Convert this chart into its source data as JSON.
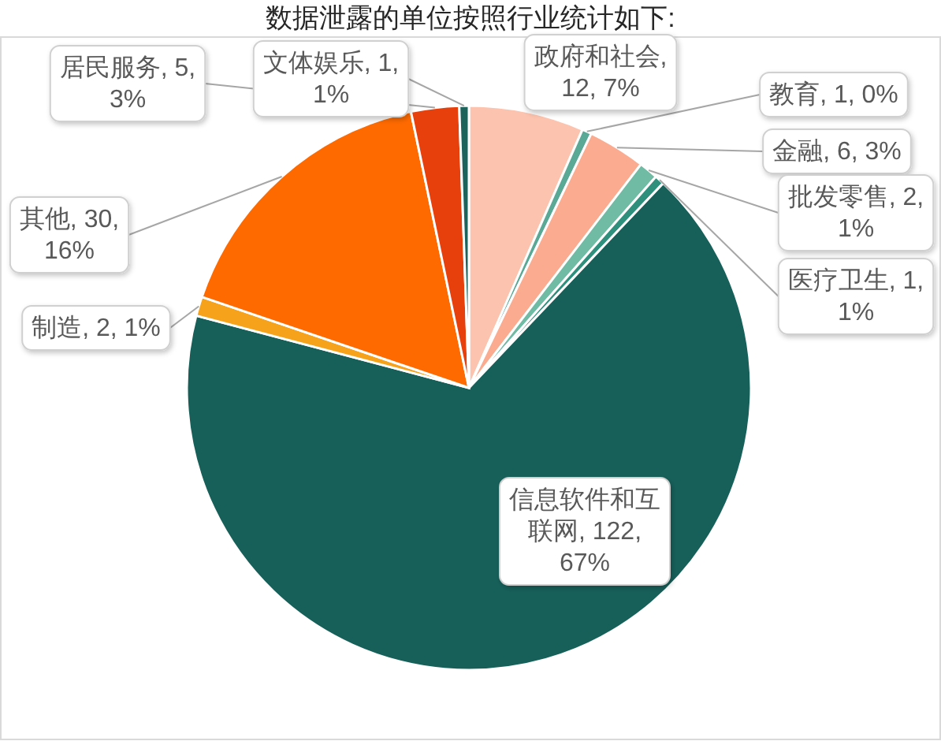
{
  "chart_data": {
    "type": "pie",
    "title": "数据泄露的单位按照行业统计如下:",
    "categories": [
      "政府和社会",
      "教育",
      "金融",
      "批发零售",
      "医疗卫生",
      "信息软件和互联网",
      "制造",
      "其他",
      "居民服务",
      "文体娱乐"
    ],
    "values": [
      12,
      1,
      6,
      2,
      1,
      122,
      2,
      30,
      5,
      1
    ],
    "colors": [
      "#fcc3ae",
      "#5aa896",
      "#fbab8f",
      "#6fbba4",
      "#2f8f7d",
      "#17605a",
      "#f7a21b",
      "#ff6a00",
      "#e8400c",
      "#1d625b"
    ],
    "value_labels": [
      ", 12, 7%",
      ", 1, 0%",
      ", 6, 3%",
      ", 2, 1%",
      ", 1, 1%",
      ", 122, 67%",
      ", 2, 1%",
      ", 30, 16%",
      ", 5, 3%",
      ", 1, 1%"
    ]
  }
}
